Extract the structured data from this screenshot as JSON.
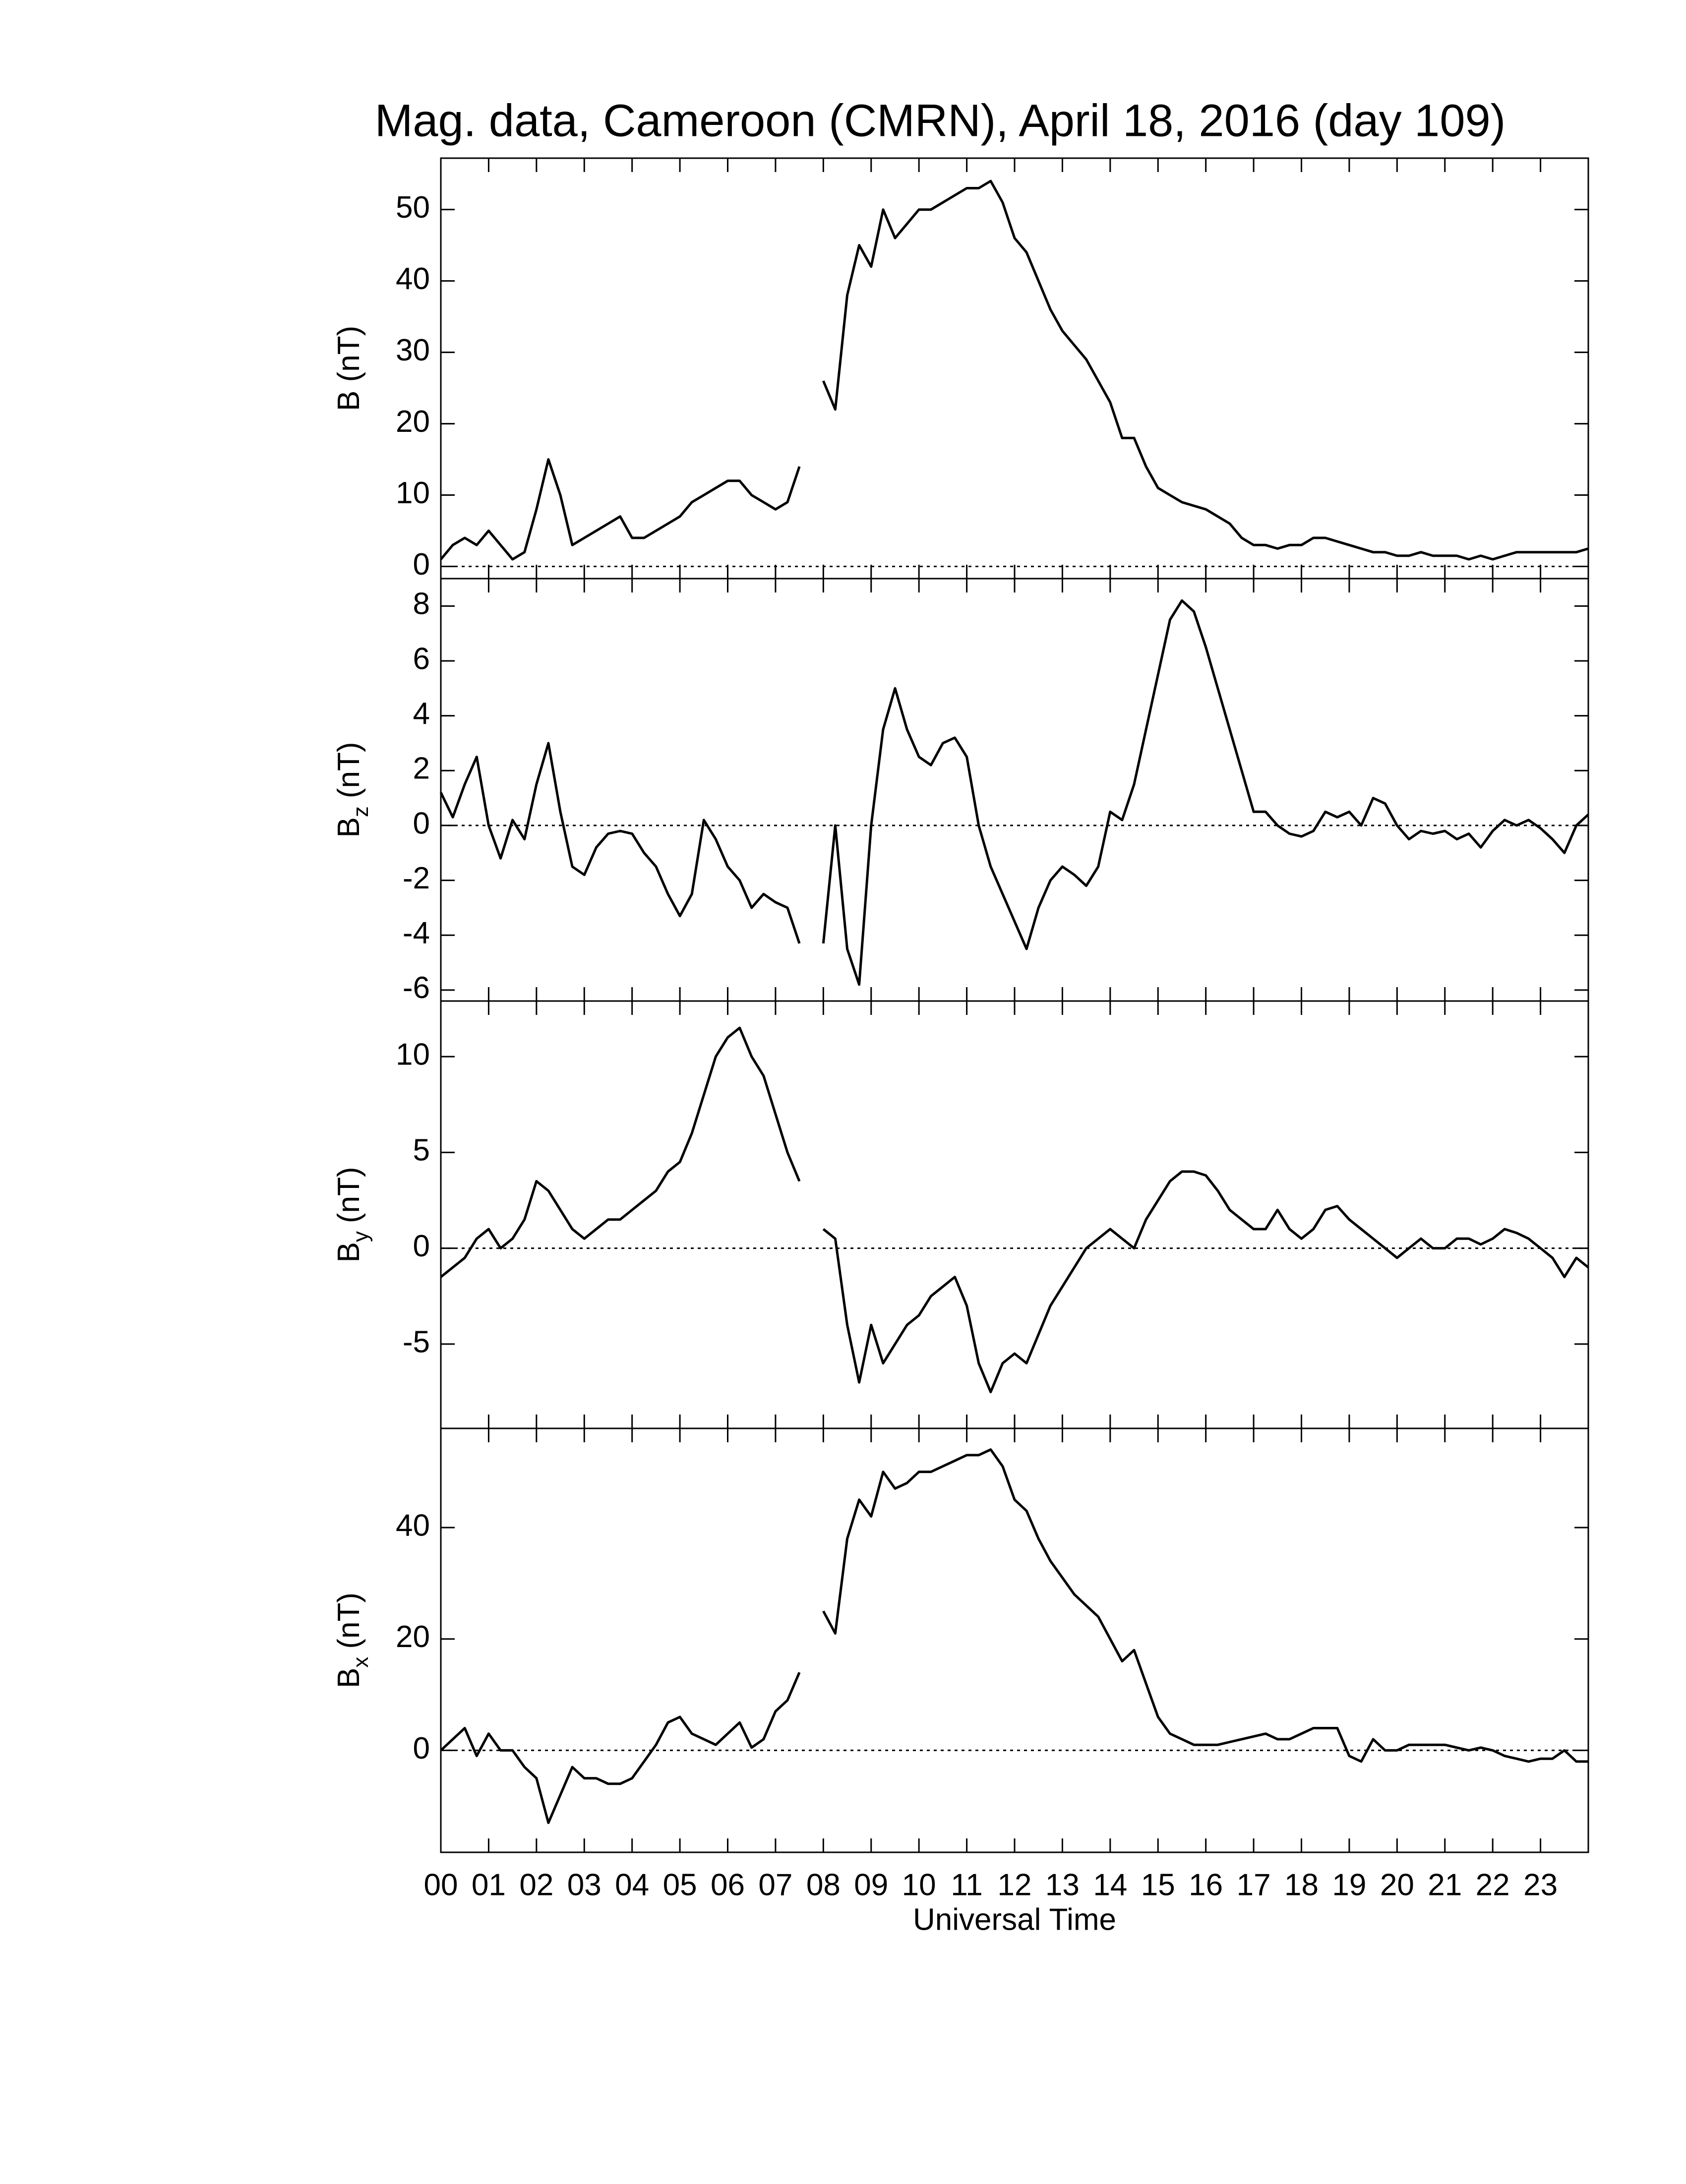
{
  "chart_data": [
    {
      "type": "line",
      "title": "Mag. data, Cameroon (CMRN), April 18, 2016 (day 109)",
      "ylabel": {
        "base": "B (nT)"
      },
      "color": "#000000",
      "ylim": [
        -1.7,
        57.2
      ],
      "yticks": [
        0,
        10,
        20,
        30,
        40,
        50
      ],
      "x": [
        0,
        0.25,
        0.5,
        0.75,
        1,
        1.25,
        1.5,
        1.75,
        2,
        2.25,
        2.5,
        2.75,
        3,
        3.25,
        3.5,
        3.75,
        4,
        4.25,
        4.5,
        4.75,
        5,
        5.25,
        5.5,
        5.75,
        6,
        6.25,
        6.5,
        6.75,
        7,
        7.25,
        7.5,
        7.75,
        8,
        8.25,
        8.5,
        8.75,
        9,
        9.25,
        9.5,
        9.75,
        10,
        10.25,
        10.5,
        10.75,
        11,
        11.25,
        11.5,
        11.75,
        12,
        12.25,
        12.5,
        12.75,
        13,
        13.25,
        13.5,
        13.75,
        14,
        14.25,
        14.5,
        14.75,
        15,
        15.25,
        15.5,
        15.75,
        16,
        16.25,
        16.5,
        16.75,
        17,
        17.25,
        17.5,
        17.75,
        18,
        18.25,
        18.5,
        18.75,
        19,
        19.25,
        19.5,
        19.75,
        20,
        20.25,
        20.5,
        20.75,
        21,
        21.25,
        21.5,
        21.75,
        22,
        22.25,
        22.5,
        22.75,
        23,
        23.25,
        23.5,
        23.75,
        24
      ],
      "values": [
        1,
        3,
        4,
        3,
        5,
        3,
        1,
        2,
        8,
        15,
        10,
        3,
        4,
        5,
        6,
        7,
        4,
        4,
        5,
        6,
        7,
        9,
        10,
        11,
        12,
        12,
        10,
        9,
        8,
        9,
        14,
        null,
        26,
        22,
        38,
        45,
        42,
        50,
        46,
        48,
        50,
        50,
        51,
        52,
        53,
        53,
        54,
        51,
        46,
        44,
        40,
        36,
        33,
        31,
        29,
        26,
        23,
        18,
        18,
        14,
        11,
        10,
        9,
        8.5,
        8,
        7,
        6,
        4,
        3,
        3,
        2.5,
        3,
        3,
        4,
        4,
        3.5,
        3,
        2.5,
        2,
        2,
        1.5,
        1.5,
        2,
        1.5,
        1.5,
        1.5,
        1,
        1.5,
        1,
        1.5,
        2,
        2,
        2,
        2,
        2,
        2,
        2.5
      ]
    },
    {
      "type": "line",
      "ylabel": {
        "base": "B",
        "sub": "z",
        "unit": "(nT)"
      },
      "color": "#000000",
      "ylim": [
        -6.4,
        9.0
      ],
      "yticks": [
        -6,
        -4,
        -2,
        0,
        2,
        4,
        6,
        8
      ],
      "x": [
        0,
        0.25,
        0.5,
        0.75,
        1,
        1.25,
        1.5,
        1.75,
        2,
        2.25,
        2.5,
        2.75,
        3,
        3.25,
        3.5,
        3.75,
        4,
        4.25,
        4.5,
        4.75,
        5,
        5.25,
        5.5,
        5.75,
        6,
        6.25,
        6.5,
        6.75,
        7,
        7.25,
        7.5,
        7.75,
        8,
        8.25,
        8.5,
        8.75,
        9,
        9.25,
        9.5,
        9.75,
        10,
        10.25,
        10.5,
        10.75,
        11,
        11.25,
        11.5,
        11.75,
        12,
        12.25,
        12.5,
        12.75,
        13,
        13.25,
        13.5,
        13.75,
        14,
        14.25,
        14.5,
        14.75,
        15,
        15.25,
        15.5,
        15.75,
        16,
        16.25,
        16.5,
        16.75,
        17,
        17.25,
        17.5,
        17.75,
        18,
        18.25,
        18.5,
        18.75,
        19,
        19.25,
        19.5,
        19.75,
        20,
        20.25,
        20.5,
        20.75,
        21,
        21.25,
        21.5,
        21.75,
        22,
        22.25,
        22.5,
        22.75,
        23,
        23.25,
        23.5,
        23.75,
        24
      ],
      "values": [
        1.2,
        0.3,
        1.5,
        2.5,
        0,
        -1.2,
        0.2,
        -0.5,
        1.5,
        3,
        0.5,
        -1.5,
        -1.8,
        -0.8,
        -0.3,
        -0.2,
        -0.3,
        -1,
        -1.5,
        -2.5,
        -3.3,
        -2.5,
        0.2,
        -0.5,
        -1.5,
        -2,
        -3,
        -2.5,
        -2.8,
        -3,
        -4.3,
        null,
        -4.3,
        0,
        -4.5,
        -5.8,
        0,
        3.5,
        5,
        3.5,
        2.5,
        2.2,
        3,
        3.2,
        2.5,
        0,
        -1.5,
        -2.5,
        -3.5,
        -4.5,
        -3,
        -2,
        -1.5,
        -1.8,
        -2.2,
        -1.5,
        0.5,
        0.2,
        1.5,
        3.5,
        5.5,
        7.5,
        8.2,
        7.8,
        6.5,
        5,
        3.5,
        2,
        0.5,
        0.5,
        0,
        -0.3,
        -0.4,
        -0.2,
        0.5,
        0.3,
        0.5,
        0,
        1,
        0.8,
        0,
        -0.5,
        -0.2,
        -0.3,
        -0.2,
        -0.5,
        -0.3,
        -0.8,
        -0.2,
        0.2,
        0,
        0.2,
        -0.1,
        -0.5,
        -1,
        0,
        0.4
      ]
    },
    {
      "type": "line",
      "ylabel": {
        "base": "B",
        "sub": "y",
        "unit": "(nT)"
      },
      "color": "#000000",
      "ylim": [
        -9.4,
        12.9
      ],
      "yticks": [
        -5,
        0,
        5,
        10
      ],
      "x": [
        0,
        0.25,
        0.5,
        0.75,
        1,
        1.25,
        1.5,
        1.75,
        2,
        2.25,
        2.5,
        2.75,
        3,
        3.25,
        3.5,
        3.75,
        4,
        4.25,
        4.5,
        4.75,
        5,
        5.25,
        5.5,
        5.75,
        6,
        6.25,
        6.5,
        6.75,
        7,
        7.25,
        7.5,
        7.75,
        8,
        8.25,
        8.5,
        8.75,
        9,
        9.25,
        9.5,
        9.75,
        10,
        10.25,
        10.5,
        10.75,
        11,
        11.25,
        11.5,
        11.75,
        12,
        12.25,
        12.5,
        12.75,
        13,
        13.25,
        13.5,
        13.75,
        14,
        14.25,
        14.5,
        14.75,
        15,
        15.25,
        15.5,
        15.75,
        16,
        16.25,
        16.5,
        16.75,
        17,
        17.25,
        17.5,
        17.75,
        18,
        18.25,
        18.5,
        18.75,
        19,
        19.25,
        19.5,
        19.75,
        20,
        20.25,
        20.5,
        20.75,
        21,
        21.25,
        21.5,
        21.75,
        22,
        22.25,
        22.5,
        22.75,
        23,
        23.25,
        23.5,
        23.75,
        24
      ],
      "values": [
        -1.5,
        -1,
        -0.5,
        0.5,
        1,
        0,
        0.5,
        1.5,
        3.5,
        3,
        2,
        1,
        0.5,
        1,
        1.5,
        1.5,
        2,
        2.5,
        3,
        4,
        4.5,
        6,
        8,
        10,
        11,
        11.5,
        10,
        9,
        7,
        5,
        3.5,
        null,
        1,
        0.5,
        -4,
        -7,
        -4,
        -6,
        -5,
        -4,
        -3.5,
        -2.5,
        -2,
        -1.5,
        -3,
        -6,
        -7.5,
        -6,
        -5.5,
        -6,
        -4.5,
        -3,
        -2,
        -1,
        0,
        0.5,
        1,
        0.5,
        0,
        1.5,
        2.5,
        3.5,
        4,
        4,
        3.8,
        3,
        2,
        1.5,
        1,
        1,
        2,
        1,
        0.5,
        1,
        2,
        2.2,
        1.5,
        1,
        0.5,
        0,
        -0.5,
        0,
        0.5,
        0,
        0,
        0.5,
        0.5,
        0.2,
        0.5,
        1,
        0.8,
        0.5,
        0,
        -0.5,
        -1.5,
        -0.5,
        -1
      ]
    },
    {
      "type": "line",
      "ylabel": {
        "base": "B",
        "sub": "x",
        "unit": "(nT)"
      },
      "color": "#000000",
      "ylim": [
        -18.3,
        57.8
      ],
      "yticks": [
        0,
        20,
        40
      ],
      "xlabel": "Universal Time",
      "xlim": [
        0,
        24
      ],
      "xticks": [
        {
          "value": 0,
          "label": "00"
        },
        {
          "value": 1,
          "label": "01"
        },
        {
          "value": 2,
          "label": "02"
        },
        {
          "value": 3,
          "label": "03"
        },
        {
          "value": 4,
          "label": "04"
        },
        {
          "value": 5,
          "label": "05"
        },
        {
          "value": 6,
          "label": "06"
        },
        {
          "value": 7,
          "label": "07"
        },
        {
          "value": 8,
          "label": "08"
        },
        {
          "value": 9,
          "label": "09"
        },
        10,
        11,
        12,
        13,
        14,
        15,
        16,
        17,
        18,
        19,
        20,
        21,
        22,
        23
      ],
      "x": [
        0,
        0.25,
        0.5,
        0.75,
        1,
        1.25,
        1.5,
        1.75,
        2,
        2.25,
        2.5,
        2.75,
        3,
        3.25,
        3.5,
        3.75,
        4,
        4.25,
        4.5,
        4.75,
        5,
        5.25,
        5.5,
        5.75,
        6,
        6.25,
        6.5,
        6.75,
        7,
        7.25,
        7.5,
        7.75,
        8,
        8.25,
        8.5,
        8.75,
        9,
        9.25,
        9.5,
        9.75,
        10,
        10.25,
        10.5,
        10.75,
        11,
        11.25,
        11.5,
        11.75,
        12,
        12.25,
        12.5,
        12.75,
        13,
        13.25,
        13.5,
        13.75,
        14,
        14.25,
        14.5,
        14.75,
        15,
        15.25,
        15.5,
        15.75,
        16,
        16.25,
        16.5,
        16.75,
        17,
        17.25,
        17.5,
        17.75,
        18,
        18.25,
        18.5,
        18.75,
        19,
        19.25,
        19.5,
        19.75,
        20,
        20.25,
        20.5,
        20.75,
        21,
        21.25,
        21.5,
        21.75,
        22,
        22.25,
        22.5,
        22.75,
        23,
        23.25,
        23.5,
        23.75,
        24
      ],
      "values": [
        0,
        2,
        4,
        -1,
        3,
        0,
        0,
        -3,
        -5,
        -13,
        -8,
        -3,
        -5,
        -5,
        -6,
        -6,
        -5,
        -2,
        1,
        5,
        6,
        3,
        2,
        1,
        3,
        5,
        0.5,
        2,
        7,
        9,
        14,
        null,
        25,
        21,
        38,
        45,
        42,
        50,
        47,
        48,
        50,
        50,
        51,
        52,
        53,
        53,
        54,
        51,
        45,
        43,
        38,
        34,
        31,
        28,
        26,
        24,
        20,
        16,
        18,
        12,
        6,
        3,
        2,
        1,
        1,
        1,
        1.5,
        2,
        2.5,
        3,
        2,
        2,
        3,
        4,
        4,
        4,
        -1,
        -2,
        2,
        0,
        0,
        1,
        1,
        1,
        1,
        0.5,
        0,
        0.5,
        0,
        -1,
        -1.5,
        -2,
        -1.5,
        -1.5,
        0,
        -2,
        -2
      ]
    }
  ]
}
